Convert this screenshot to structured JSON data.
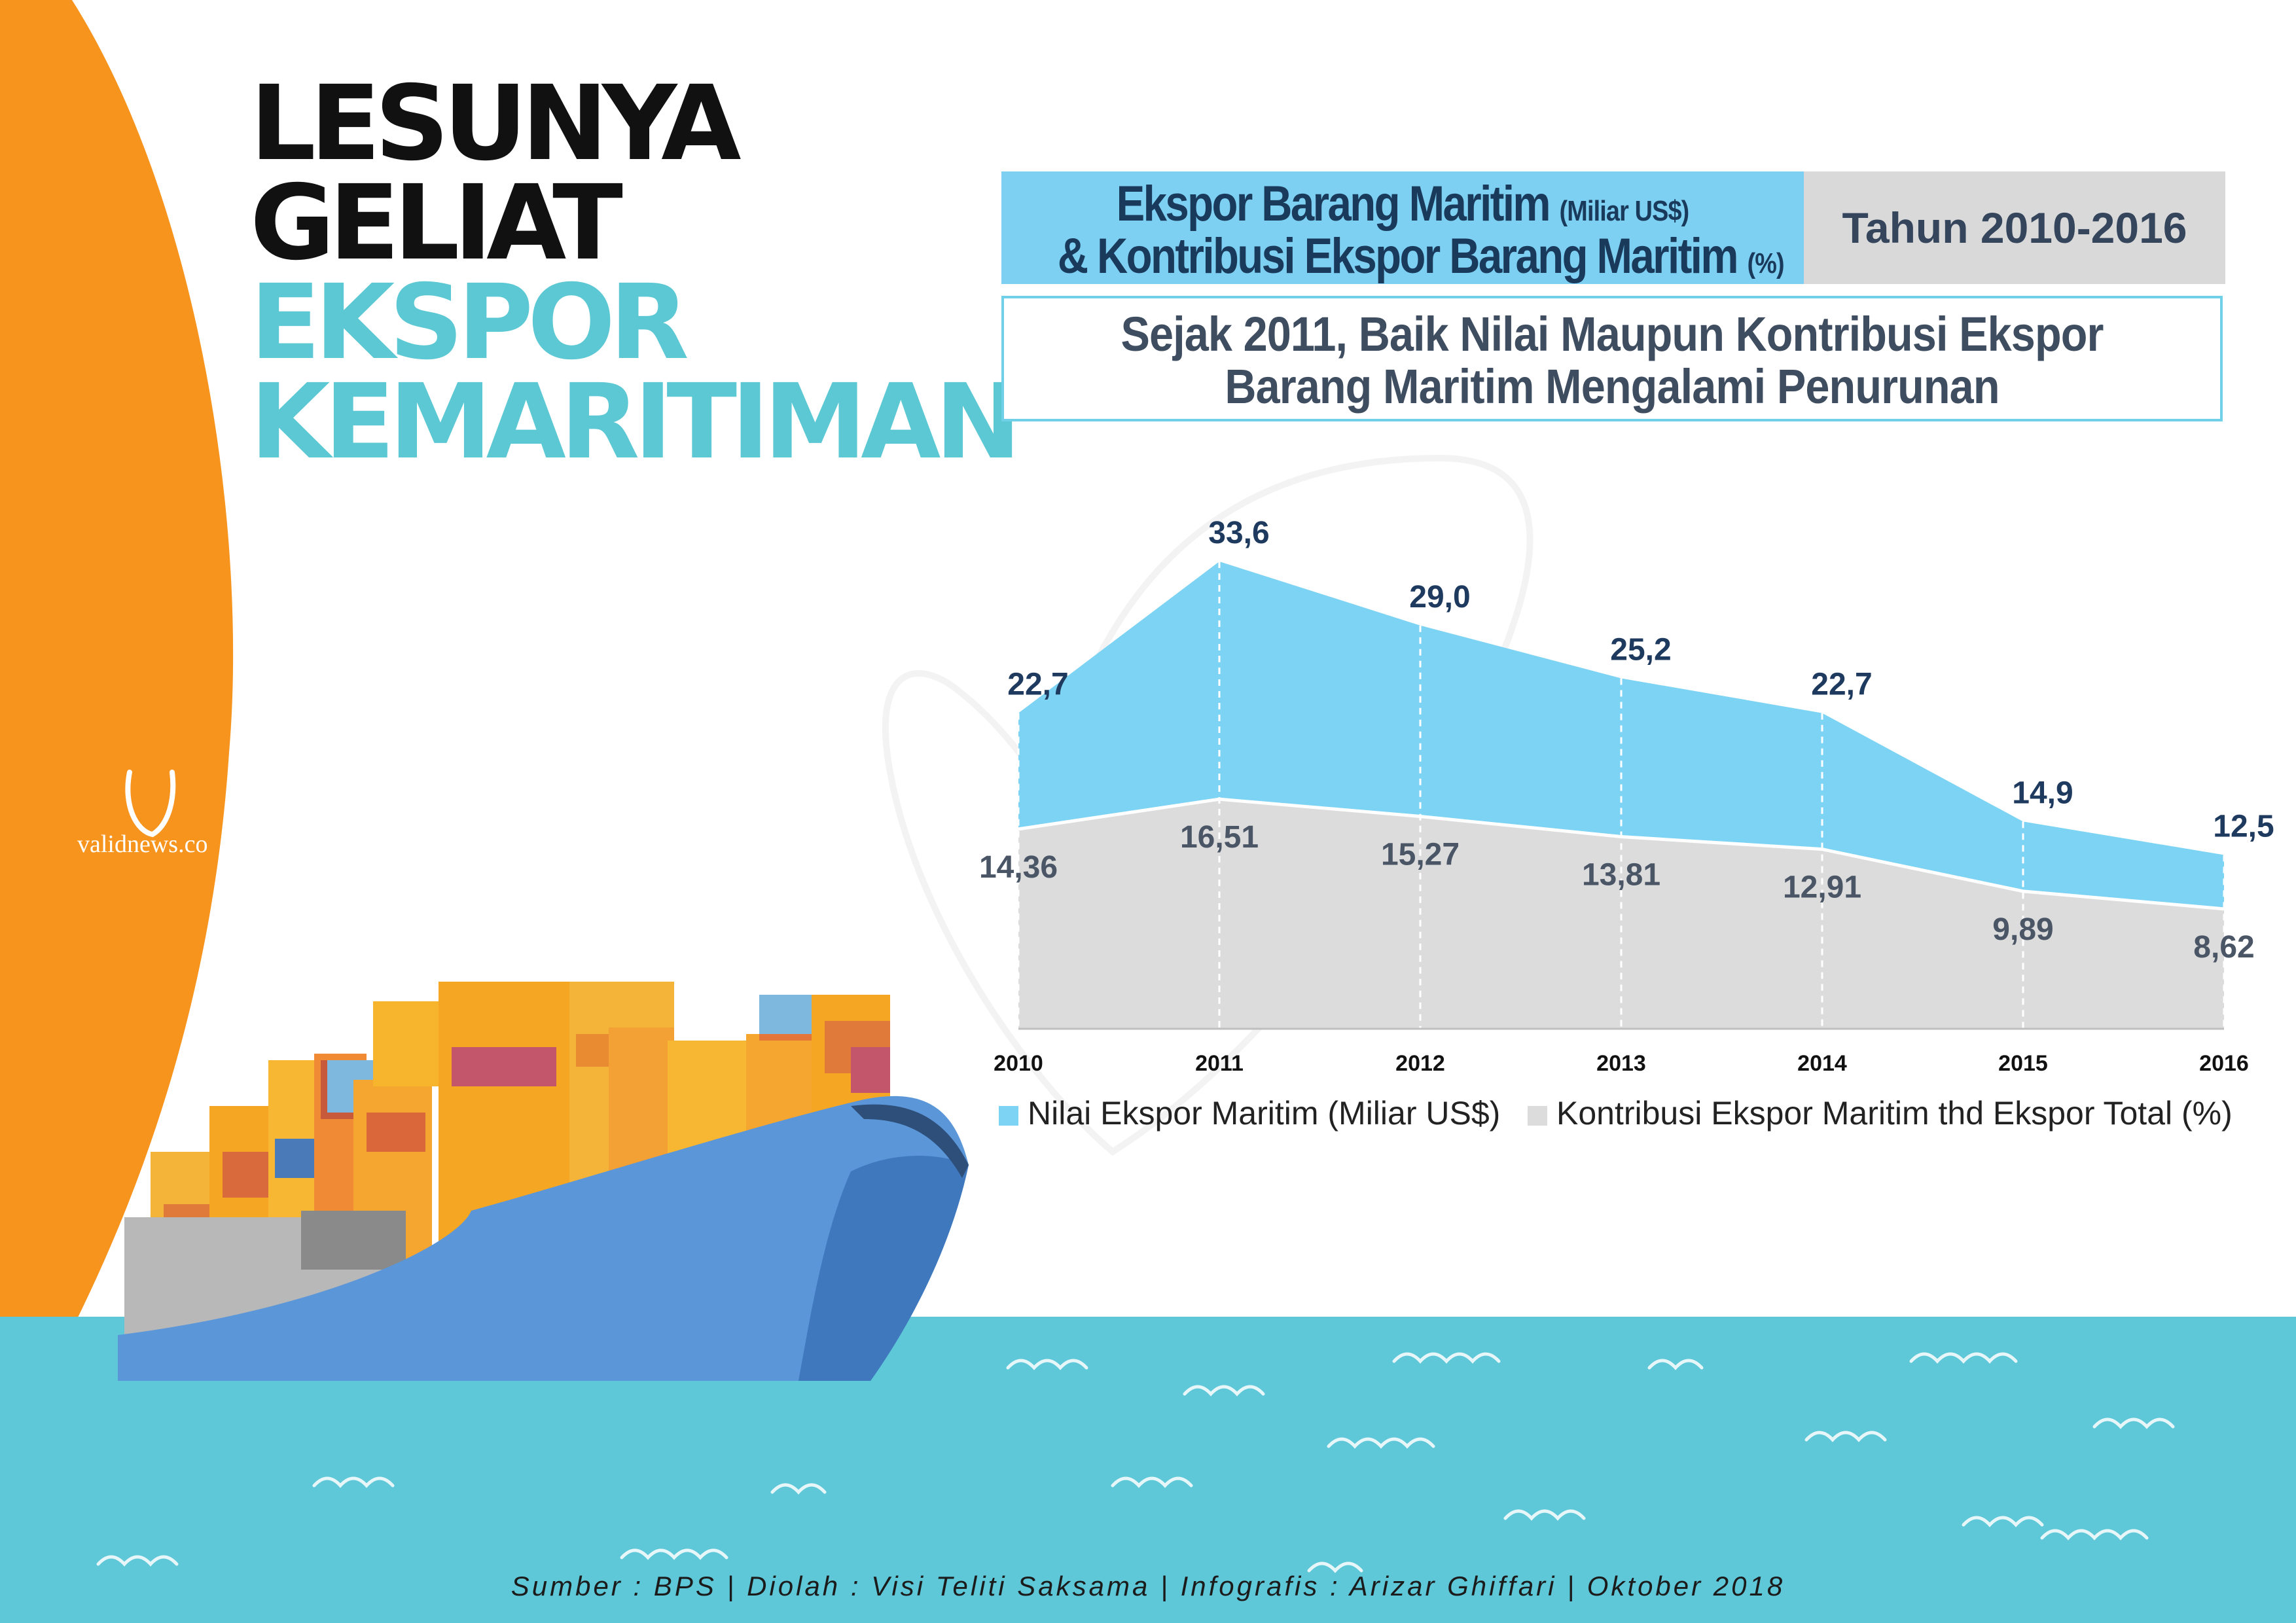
{
  "title": {
    "line1": "LESUNYA",
    "line2": "GELIAT",
    "line3": "EKSPOR",
    "line4": "KEMARITIMAN"
  },
  "header": {
    "main_line1": "Ekspor Barang Maritim",
    "main_line1_unit": "(Miliar US$)",
    "main_line2": "& Kontribusi Ekspor Barang Maritim",
    "main_line2_unit": "(%)",
    "period": "Tahun 2010-2016"
  },
  "subtitle": {
    "line1": "Sejak 2011, Baik Nilai Maupun Kontribusi Ekspor",
    "line2": "Barang Maritim Mengalami Penurunan"
  },
  "logo": {
    "text": "validnews.co"
  },
  "footer": {
    "text": "Sumber : BPS | Diolah : Visi Teliti Saksama | Infografis : Arizar Ghiffari | Oktober 2018"
  },
  "colors": {
    "accent_orange": "#f7941d",
    "teal": "#5bc8d4",
    "sea": "#5ec8d8",
    "series_value": "#7dd3f4",
    "series_contribution": "#dcdcdc",
    "ship_hull": "#5b96d9"
  },
  "chart_data": {
    "type": "area",
    "categories": [
      "2010",
      "2011",
      "2012",
      "2013",
      "2014",
      "2015",
      "2016"
    ],
    "series": [
      {
        "name": "Nilai Ekspor Maritim (Miliar US$)",
        "values": [
          22.7,
          33.6,
          29.0,
          25.2,
          22.7,
          14.9,
          12.5
        ],
        "labels": [
          "22,7",
          "33,6",
          "29,0",
          "25,2",
          "22,7",
          "14,9",
          "12,5"
        ],
        "color": "#7dd3f4"
      },
      {
        "name": "Kontribusi Ekspor Maritim thd Ekspor Total  (%)",
        "values": [
          14.36,
          16.51,
          15.27,
          13.81,
          12.91,
          9.89,
          8.62
        ],
        "labels": [
          "14,36",
          "16,51",
          "15,27",
          "13,81",
          "12,91",
          "9,89",
          "8,62"
        ],
        "color": "#dcdcdc"
      }
    ],
    "ylim": [
      0,
      33.6
    ],
    "grid": false,
    "legend_position": "bottom"
  }
}
